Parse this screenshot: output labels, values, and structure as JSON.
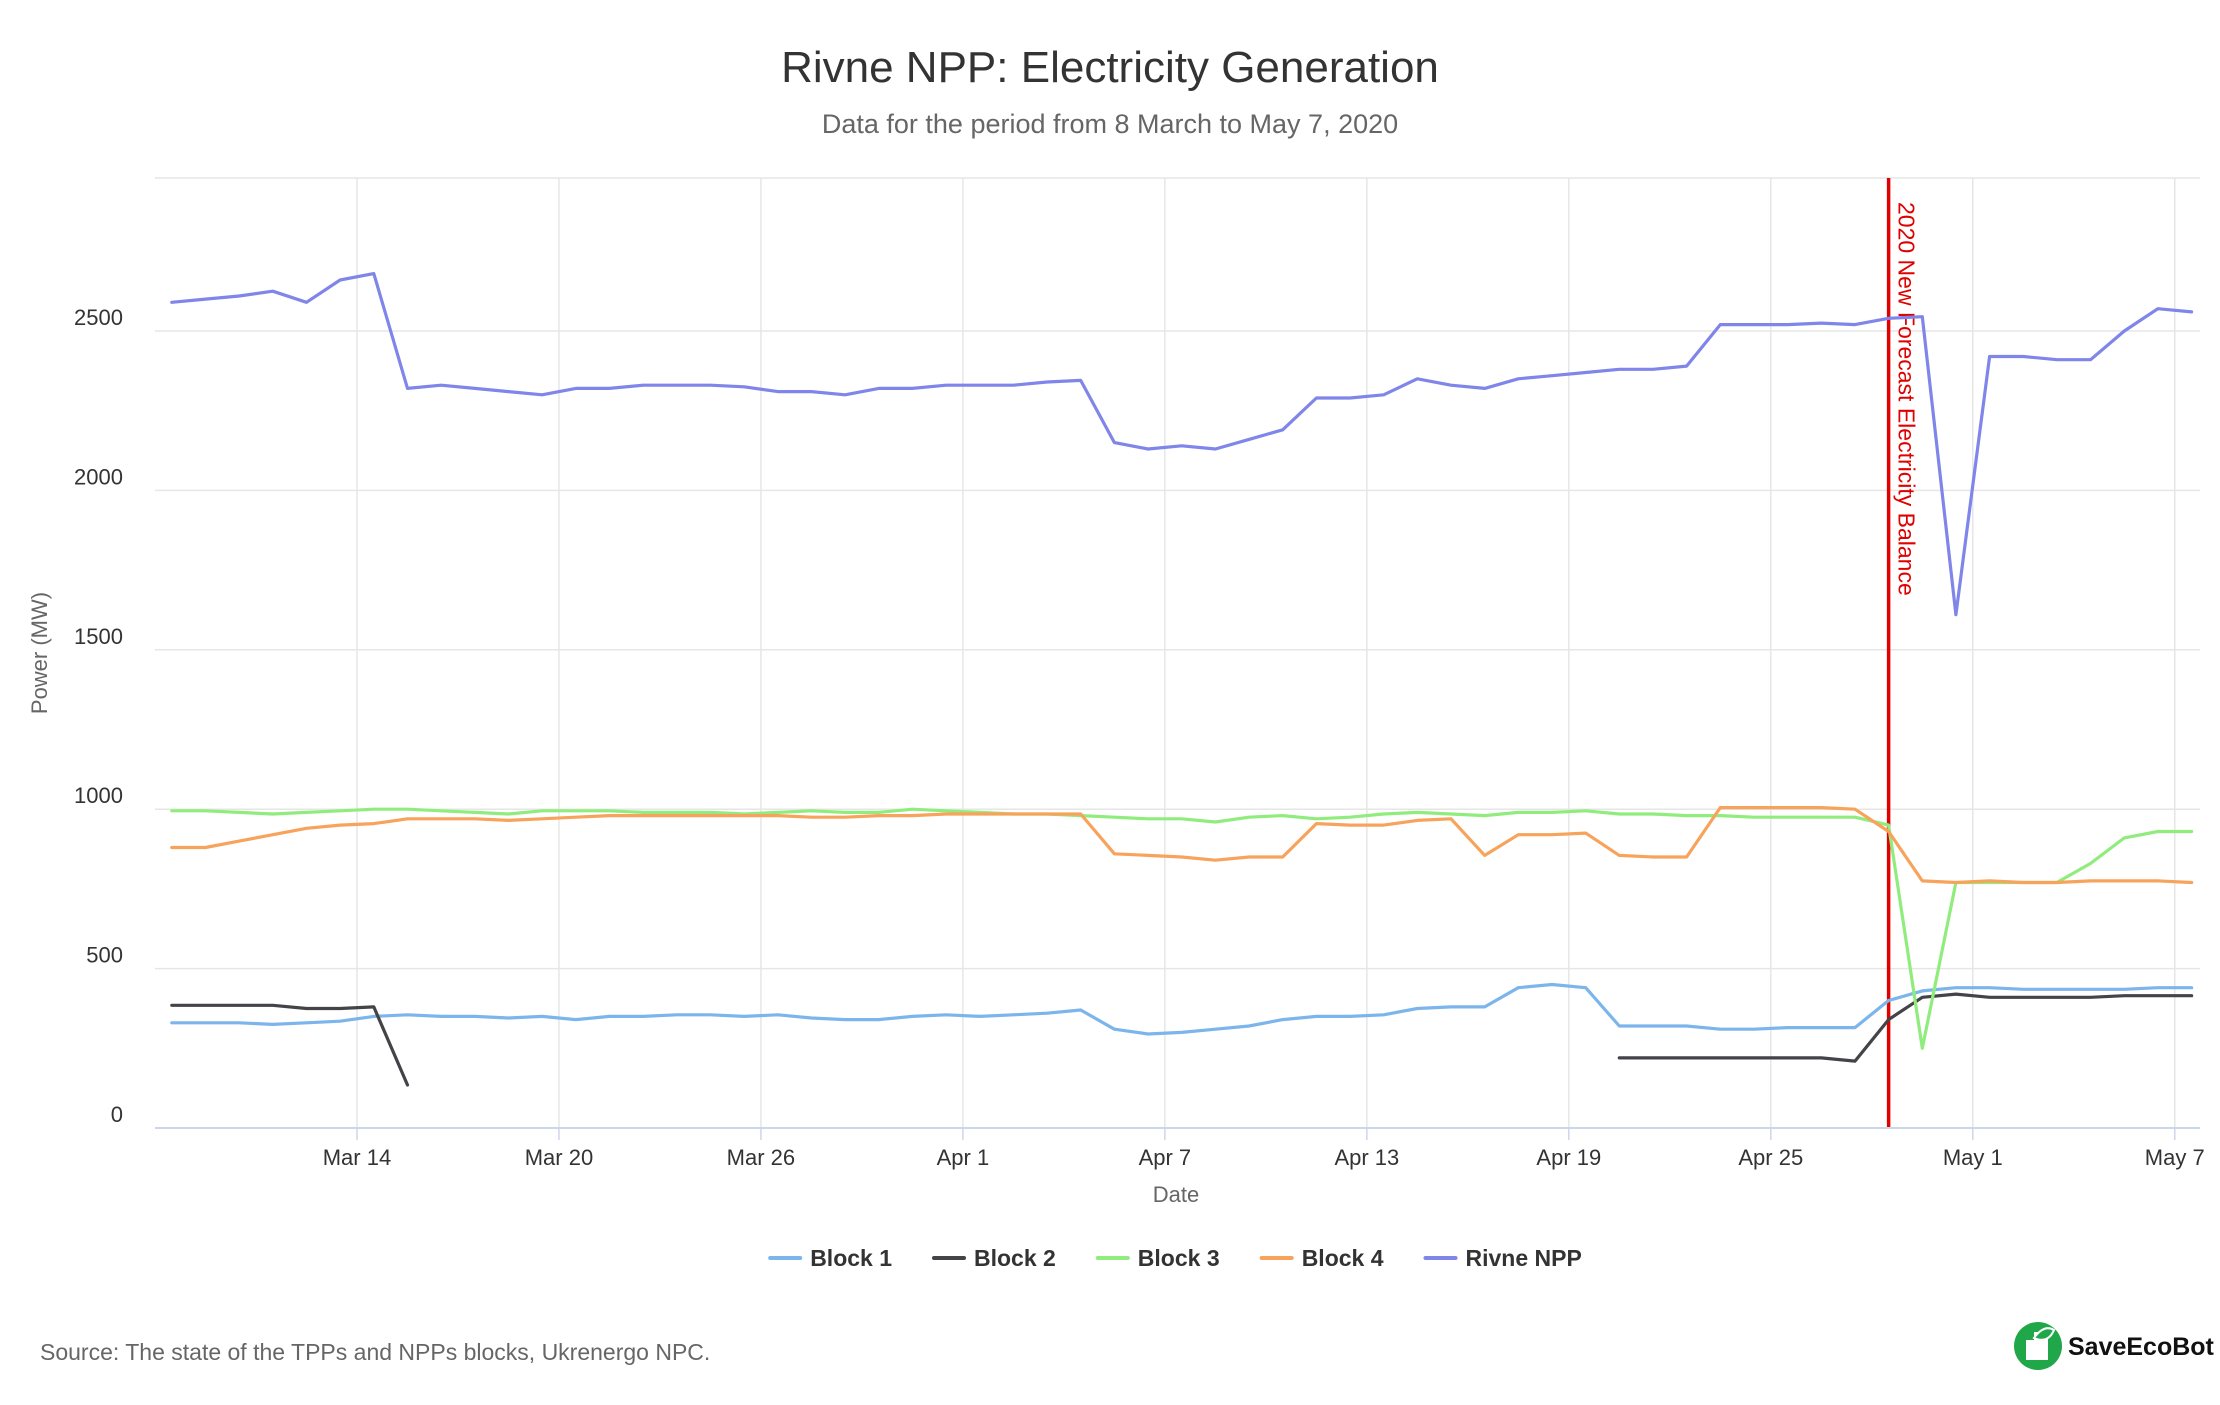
{
  "chart_data": {
    "type": "line",
    "title": "Rivne NPP: Electricity Generation",
    "subtitle": "Data for the period from 8 March to May 7, 2020",
    "xlabel": "Date",
    "ylabel": "Power (MW)",
    "x_ticks": [
      "Mar 14",
      "Mar 20",
      "Mar 26",
      "Apr 1",
      "Apr 7",
      "Apr 13",
      "Apr 19",
      "Apr 25",
      "May 1",
      "May 7"
    ],
    "y_ticks": [
      "0",
      "500",
      "1000",
      "1500",
      "2000",
      "2500"
    ],
    "xlim": [
      "2020-03-08",
      "2020-05-07"
    ],
    "ylim": [
      0,
      2980
    ],
    "grid": true,
    "legend_position": "bottom-center",
    "annotation": {
      "date": "2020-04-28",
      "label": "2020 New Forecast Electricity Balance",
      "color": "#e00000"
    },
    "x": [
      "2020-03-08",
      "2020-03-09",
      "2020-03-10",
      "2020-03-11",
      "2020-03-12",
      "2020-03-13",
      "2020-03-14",
      "2020-03-15",
      "2020-03-16",
      "2020-03-17",
      "2020-03-18",
      "2020-03-19",
      "2020-03-20",
      "2020-03-21",
      "2020-03-22",
      "2020-03-23",
      "2020-03-24",
      "2020-03-25",
      "2020-03-26",
      "2020-03-27",
      "2020-03-28",
      "2020-03-29",
      "2020-03-30",
      "2020-03-31",
      "2020-04-01",
      "2020-04-02",
      "2020-04-03",
      "2020-04-04",
      "2020-04-05",
      "2020-04-06",
      "2020-04-07",
      "2020-04-08",
      "2020-04-09",
      "2020-04-10",
      "2020-04-11",
      "2020-04-12",
      "2020-04-13",
      "2020-04-14",
      "2020-04-15",
      "2020-04-16",
      "2020-04-17",
      "2020-04-18",
      "2020-04-19",
      "2020-04-20",
      "2020-04-21",
      "2020-04-22",
      "2020-04-23",
      "2020-04-24",
      "2020-04-25",
      "2020-04-26",
      "2020-04-27",
      "2020-04-28",
      "2020-04-29",
      "2020-04-30",
      "2020-05-01",
      "2020-05-02",
      "2020-05-03",
      "2020-05-04",
      "2020-05-05",
      "2020-05-06",
      "2020-05-07"
    ],
    "series": [
      {
        "name": "Block 1",
        "color": "#7cb5ec",
        "values": [
          330,
          330,
          330,
          325,
          330,
          335,
          350,
          355,
          350,
          350,
          345,
          350,
          340,
          350,
          350,
          355,
          355,
          350,
          355,
          345,
          340,
          340,
          350,
          355,
          350,
          355,
          360,
          370,
          310,
          295,
          300,
          310,
          320,
          340,
          350,
          350,
          355,
          375,
          380,
          380,
          440,
          450,
          440,
          320,
          320,
          320,
          310,
          310,
          315,
          315,
          315,
          400,
          430,
          440,
          440,
          435,
          435,
          435,
          435,
          440,
          440
        ]
      },
      {
        "name": "Block 2",
        "color": "#434348",
        "values": [
          385,
          385,
          385,
          385,
          375,
          375,
          380,
          135,
          null,
          null,
          null,
          null,
          null,
          null,
          null,
          null,
          null,
          null,
          null,
          null,
          null,
          null,
          null,
          null,
          null,
          null,
          null,
          null,
          null,
          null,
          null,
          null,
          null,
          null,
          null,
          null,
          null,
          null,
          null,
          null,
          null,
          null,
          null,
          220,
          220,
          220,
          220,
          220,
          220,
          220,
          210,
          340,
          410,
          420,
          410,
          410,
          410,
          410,
          415,
          415,
          415
        ]
      },
      {
        "name": "Block 3",
        "color": "#90ed7d",
        "values": [
          995,
          995,
          990,
          985,
          990,
          995,
          1000,
          1000,
          995,
          990,
          985,
          995,
          995,
          995,
          990,
          990,
          990,
          985,
          990,
          995,
          990,
          990,
          1000,
          995,
          990,
          985,
          985,
          980,
          975,
          970,
          970,
          960,
          975,
          980,
          970,
          975,
          985,
          990,
          985,
          980,
          990,
          990,
          995,
          985,
          985,
          980,
          980,
          975,
          975,
          975,
          975,
          950,
          250,
          770,
          770,
          770,
          770,
          830,
          910,
          930,
          930
        ]
      },
      {
        "name": "Block 4",
        "color": "#f7a35c",
        "values": [
          880,
          880,
          900,
          920,
          940,
          950,
          955,
          970,
          970,
          970,
          965,
          970,
          975,
          980,
          980,
          980,
          980,
          980,
          980,
          975,
          975,
          980,
          980,
          985,
          985,
          985,
          985,
          985,
          860,
          855,
          850,
          840,
          850,
          850,
          955,
          950,
          950,
          965,
          970,
          855,
          920,
          920,
          925,
          855,
          850,
          850,
          1005,
          1005,
          1005,
          1005,
          1000,
          930,
          775,
          770,
          775,
          770,
          770,
          775,
          775,
          775,
          770
        ]
      },
      {
        "name": "Rivne NPP",
        "color": "#8085e9",
        "values": [
          2590,
          2600,
          2610,
          2625,
          2590,
          2660,
          2680,
          2320,
          2330,
          2320,
          2310,
          2300,
          2320,
          2320,
          2330,
          2330,
          2330,
          2325,
          2310,
          2310,
          2300,
          2320,
          2320,
          2330,
          2330,
          2330,
          2340,
          2345,
          2150,
          2130,
          2140,
          2130,
          2160,
          2190,
          2290,
          2290,
          2300,
          2350,
          2330,
          2320,
          2350,
          2360,
          2370,
          2380,
          2380,
          2390,
          2520,
          2520,
          2520,
          2525,
          2520,
          2540,
          2545,
          1610,
          2420,
          2420,
          2410,
          2410,
          2500,
          2570,
          2560
        ]
      }
    ]
  },
  "credits": "Source: The state of the TPPs and NPPs blocks, Ukrenergo NPC.",
  "logo": {
    "text": "SaveEcoBot",
    "color": "#1fa74a"
  }
}
